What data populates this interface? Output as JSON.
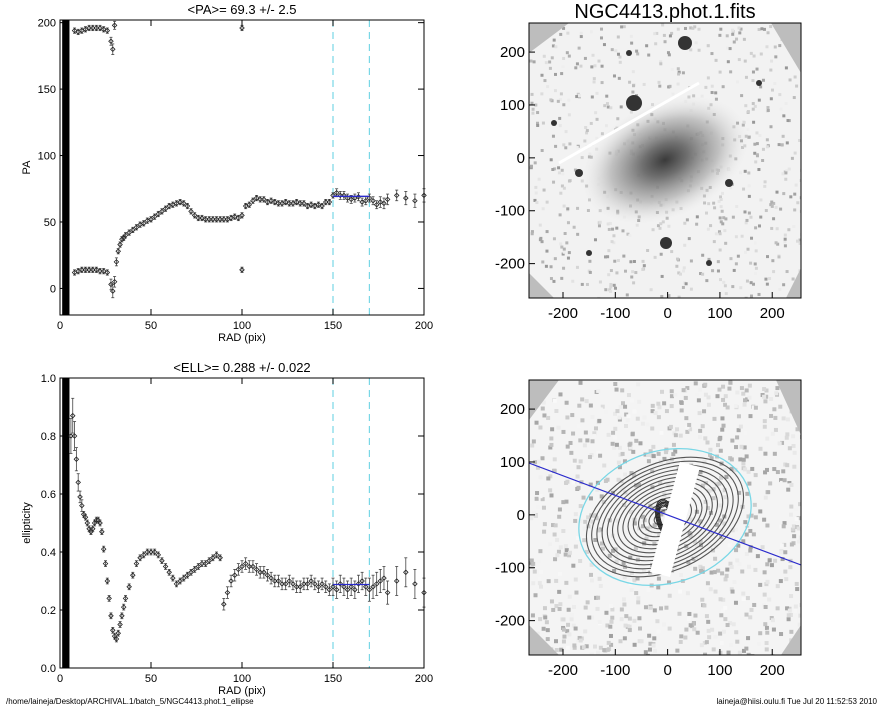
{
  "footer": {
    "path": "/home/laineja/Desktop/ARCHIVAL.1/batch_5/NGC4413.phot.1_ellipse",
    "stamp": "laineja@hiisi.oulu.fi  Tue Jul 20 11:52:53 2010"
  },
  "image_top": {
    "title": "NGC4413.phot.1.fits",
    "xticks": [
      -200,
      -100,
      0,
      100,
      200
    ],
    "yticks": [
      200,
      100,
      0,
      -100,
      -200
    ],
    "range": [
      -265,
      255
    ],
    "colors": {
      "sky": "#f2f2f2",
      "mask": "#bdbdbd",
      "galaxy": "#8c8c8c"
    }
  },
  "image_bottom": {
    "xticks": [
      -200,
      -100,
      0,
      100,
      200
    ],
    "yticks": [
      200,
      100,
      0,
      -100,
      -200
    ],
    "range": [
      -265,
      255
    ],
    "colors": {
      "contour": "#555555",
      "ellipse": "#79d7e6",
      "major_axis": "#2a2acc"
    }
  },
  "chart_data": [
    {
      "type": "scatter",
      "title": "<PA>=  69.3 +/-   2.5",
      "xlabel": "RAD (pix)",
      "ylabel": "PA",
      "xlim": [
        0,
        200
      ],
      "ylim": [
        -20,
        202
      ],
      "xticks": [
        0,
        50,
        100,
        150,
        200
      ],
      "yticks": [
        0,
        50,
        100,
        150,
        200
      ],
      "vlines": [
        150,
        170
      ],
      "mean_line": {
        "x": [
          150,
          170
        ],
        "y": 69.3
      },
      "series": [
        {
          "x": [
            8,
            10,
            12,
            14,
            16,
            18,
            20,
            22,
            24,
            26,
            28,
            29,
            30,
            31,
            32,
            33,
            34,
            35,
            36,
            38,
            40,
            42,
            44,
            46,
            48,
            50,
            52,
            54,
            56,
            58,
            60,
            62,
            64,
            66,
            68,
            70,
            72,
            74,
            76,
            78,
            80,
            82,
            84,
            86,
            88,
            90,
            92,
            94,
            96,
            98,
            100,
            102,
            104,
            106,
            108,
            110,
            112,
            114,
            116,
            118,
            120,
            122,
            124,
            126,
            128,
            130,
            132,
            134,
            136,
            138,
            140,
            142,
            144,
            146,
            148,
            150,
            152,
            154,
            156,
            158,
            160,
            162,
            164,
            166,
            168,
            170,
            172,
            174,
            176,
            178,
            180,
            185,
            190,
            195,
            200
          ],
          "y": [
            12,
            13,
            14,
            14,
            14,
            14,
            14,
            13,
            13,
            12,
            3,
            -2,
            5,
            20,
            28,
            33,
            37,
            38,
            40,
            42,
            44,
            46,
            48,
            49,
            51,
            52,
            54,
            56,
            58,
            60,
            62,
            63,
            64,
            65,
            64,
            62,
            58,
            55,
            53,
            53,
            52,
            52,
            52,
            52,
            52,
            52,
            52,
            53,
            54,
            53,
            55,
            62,
            63,
            66,
            68,
            67,
            67,
            65,
            66,
            65,
            64,
            64,
            65,
            64,
            64,
            65,
            64,
            64,
            62,
            63,
            62,
            63,
            62,
            65,
            65,
            70,
            72,
            70,
            70,
            68,
            67,
            68,
            69,
            65,
            66,
            68,
            66,
            63,
            65,
            64,
            67,
            70,
            68,
            66,
            70
          ],
          "err": [
            2,
            2,
            2,
            2,
            2,
            2,
            2,
            2,
            2,
            2,
            4,
            5,
            4,
            3,
            2,
            2,
            2,
            2,
            2,
            2,
            2,
            2,
            2,
            2,
            2,
            2,
            2,
            2,
            2,
            2,
            2,
            2,
            2,
            2,
            2,
            2,
            2,
            2,
            2,
            2,
            2,
            2,
            2,
            2,
            2,
            2,
            2,
            2,
            2,
            2,
            2,
            2,
            2,
            2,
            2,
            2,
            2,
            2,
            2,
            2,
            2,
            2,
            2,
            2,
            2,
            2,
            2,
            2,
            2,
            2,
            2,
            2,
            2,
            2,
            2,
            2,
            3,
            3,
            3,
            3,
            3,
            3,
            3,
            3,
            3,
            3,
            3,
            3,
            4,
            4,
            4,
            4,
            5,
            5,
            5
          ]
        },
        {
          "x": [
            8,
            10,
            12,
            14,
            16,
            18,
            20,
            22,
            24,
            26,
            28,
            29,
            30,
            100,
            100
          ],
          "y": [
            194,
            193,
            194,
            195,
            196,
            196,
            196,
            196,
            195,
            194,
            186,
            180,
            198,
            196,
            14
          ],
          "err": [
            2,
            2,
            2,
            2,
            2,
            2,
            2,
            2,
            2,
            2,
            3,
            4,
            3,
            2,
            2
          ]
        }
      ]
    },
    {
      "type": "scatter",
      "title": "<ELL>= 0.288 +/-  0.022",
      "xlabel": "RAD (pix)",
      "ylabel": "ellipticity",
      "xlim": [
        0,
        200
      ],
      "ylim": [
        0,
        1
      ],
      "xticks": [
        0,
        50,
        100,
        150,
        200
      ],
      "yticks": [
        0.0,
        0.2,
        0.4,
        0.6,
        0.8,
        1.0
      ],
      "vlines": [
        150,
        170
      ],
      "mean_line": {
        "x": [
          150,
          170
        ],
        "y": 0.288
      },
      "series": [
        {
          "x": [
            6,
            7,
            8,
            9,
            10,
            11,
            12,
            13,
            14,
            15,
            16,
            17,
            18,
            19,
            20,
            21,
            22,
            23,
            24,
            25,
            26,
            27,
            28,
            29,
            30,
            31,
            32,
            33,
            34,
            35,
            36,
            38,
            40,
            42,
            44,
            46,
            48,
            50,
            52,
            54,
            56,
            58,
            60,
            62,
            64,
            66,
            68,
            70,
            72,
            74,
            76,
            78,
            80,
            82,
            84,
            86,
            88,
            90,
            92,
            94,
            96,
            98,
            100,
            102,
            104,
            106,
            108,
            110,
            112,
            114,
            116,
            118,
            120,
            122,
            124,
            126,
            128,
            130,
            132,
            134,
            136,
            138,
            140,
            142,
            144,
            146,
            148,
            150,
            152,
            154,
            156,
            158,
            160,
            162,
            164,
            166,
            168,
            170,
            172,
            174,
            176,
            178,
            180,
            185,
            190,
            195,
            200
          ],
          "y": [
            0.8,
            0.87,
            0.8,
            0.72,
            0.64,
            0.59,
            0.56,
            0.53,
            0.52,
            0.5,
            0.48,
            0.47,
            0.48,
            0.5,
            0.51,
            0.51,
            0.5,
            0.47,
            0.41,
            0.36,
            0.3,
            0.24,
            0.18,
            0.13,
            0.11,
            0.1,
            0.12,
            0.15,
            0.18,
            0.21,
            0.24,
            0.28,
            0.32,
            0.36,
            0.38,
            0.39,
            0.4,
            0.4,
            0.4,
            0.39,
            0.37,
            0.35,
            0.33,
            0.31,
            0.29,
            0.3,
            0.31,
            0.32,
            0.33,
            0.34,
            0.35,
            0.36,
            0.36,
            0.37,
            0.38,
            0.39,
            0.38,
            0.22,
            0.26,
            0.3,
            0.32,
            0.34,
            0.35,
            0.36,
            0.35,
            0.35,
            0.34,
            0.33,
            0.33,
            0.32,
            0.31,
            0.3,
            0.3,
            0.29,
            0.29,
            0.3,
            0.29,
            0.28,
            0.28,
            0.29,
            0.29,
            0.3,
            0.29,
            0.28,
            0.29,
            0.28,
            0.27,
            0.28,
            0.27,
            0.29,
            0.28,
            0.27,
            0.28,
            0.27,
            0.29,
            0.3,
            0.28,
            0.27,
            0.28,
            0.29,
            0.3,
            0.31,
            0.26,
            0.3,
            0.33,
            0.29,
            0.26
          ],
          "err": [
            0.06,
            0.06,
            0.05,
            0.04,
            0.03,
            0.02,
            0.02,
            0.01,
            0.01,
            0.01,
            0.01,
            0.01,
            0.01,
            0.01,
            0.01,
            0.01,
            0.01,
            0.01,
            0.01,
            0.01,
            0.01,
            0.01,
            0.01,
            0.01,
            0.01,
            0.01,
            0.01,
            0.01,
            0.01,
            0.01,
            0.01,
            0.01,
            0.01,
            0.01,
            0.01,
            0.01,
            0.01,
            0.01,
            0.01,
            0.01,
            0.01,
            0.01,
            0.01,
            0.01,
            0.01,
            0.01,
            0.01,
            0.01,
            0.01,
            0.01,
            0.01,
            0.01,
            0.01,
            0.01,
            0.01,
            0.01,
            0.01,
            0.02,
            0.02,
            0.02,
            0.02,
            0.02,
            0.02,
            0.02,
            0.02,
            0.02,
            0.02,
            0.02,
            0.02,
            0.02,
            0.02,
            0.02,
            0.02,
            0.02,
            0.02,
            0.02,
            0.02,
            0.02,
            0.02,
            0.02,
            0.02,
            0.02,
            0.02,
            0.02,
            0.02,
            0.02,
            0.02,
            0.03,
            0.03,
            0.03,
            0.03,
            0.03,
            0.03,
            0.03,
            0.03,
            0.03,
            0.03,
            0.04,
            0.04,
            0.04,
            0.04,
            0.04,
            0.04,
            0.05,
            0.05,
            0.05,
            0.05
          ]
        }
      ]
    }
  ]
}
